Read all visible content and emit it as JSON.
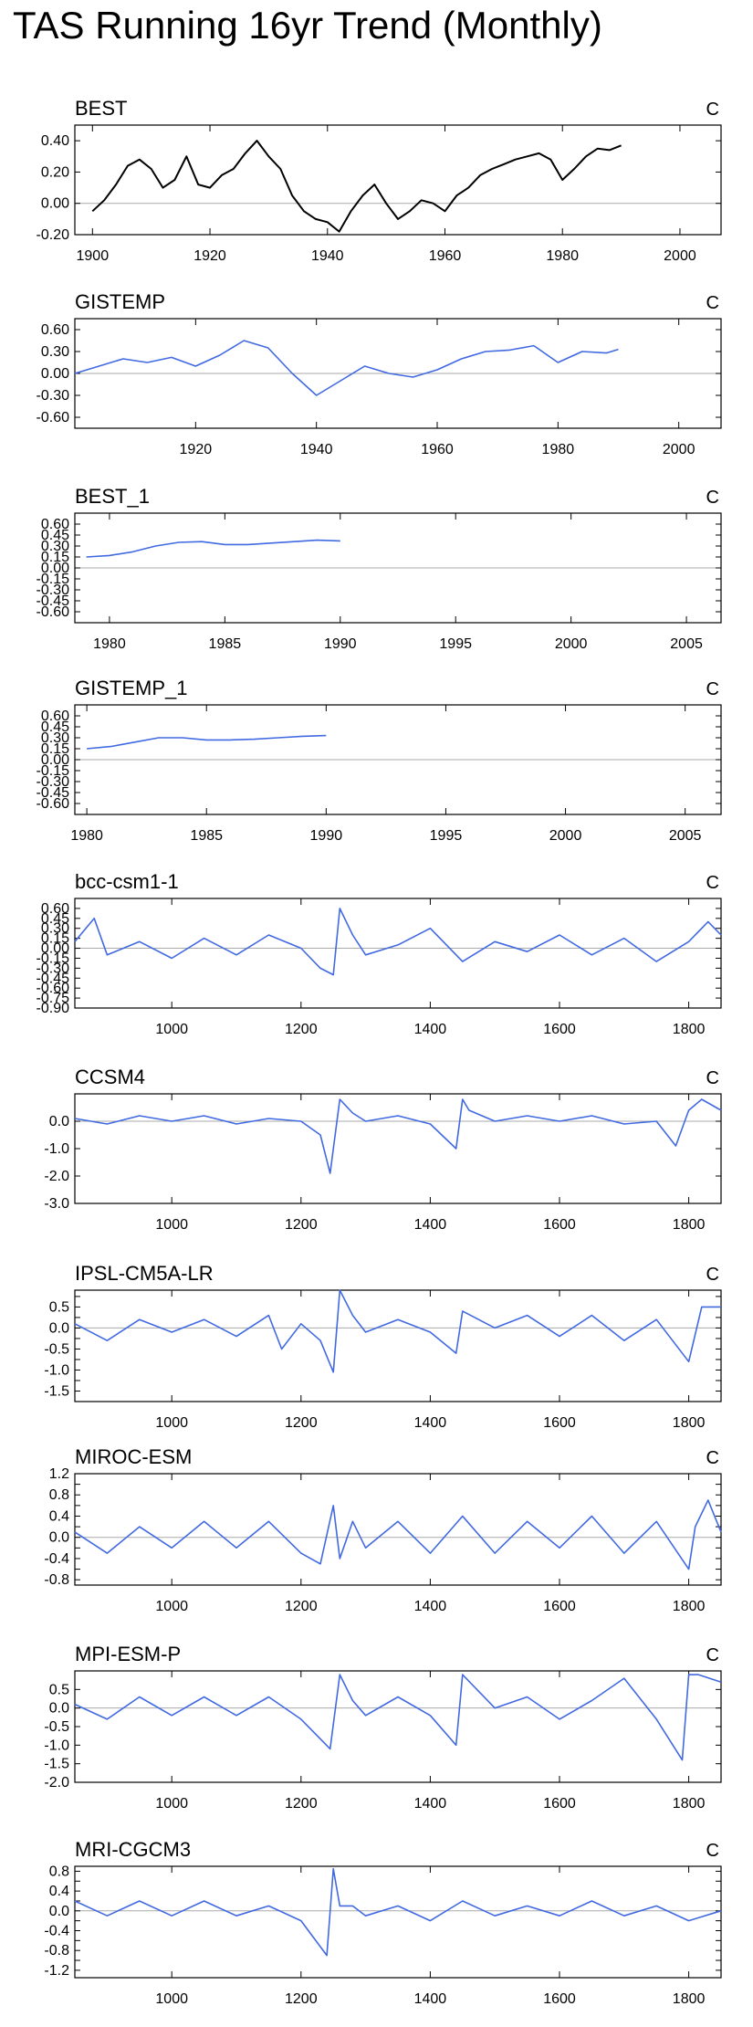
{
  "title": "TAS Running 16yr Trend (Monthly)",
  "colors": {
    "obs": "#000000",
    "model": "#4169e1",
    "zero_line": "#aaaaaa"
  },
  "chart_data": [
    {
      "type": "line",
      "name": "BEST",
      "unit": "C",
      "color": "#000000",
      "xlim": [
        1897,
        2007
      ],
      "xticks": [
        1900,
        1920,
        1940,
        1960,
        1980,
        2000
      ],
      "ylim": [
        -0.2,
        0.5
      ],
      "yticks": [
        -0.2,
        0.0,
        0.2,
        0.4
      ],
      "yfmt": 2,
      "series": [
        {
          "x": [
            1900,
            1902,
            1904,
            1906,
            1908,
            1910,
            1912,
            1914,
            1916,
            1918,
            1920,
            1922,
            1924,
            1926,
            1928,
            1930,
            1932,
            1934,
            1936,
            1938,
            1940,
            1942,
            1944,
            1946,
            1948,
            1950,
            1952,
            1954,
            1956,
            1958,
            1960,
            1962,
            1964,
            1966,
            1968,
            1970,
            1972,
            1974,
            1976,
            1978,
            1980,
            1982,
            1984,
            1986,
            1988,
            1990
          ],
          "y": [
            -0.05,
            0.02,
            0.12,
            0.24,
            0.28,
            0.22,
            0.1,
            0.15,
            0.3,
            0.12,
            0.1,
            0.18,
            0.22,
            0.32,
            0.4,
            0.3,
            0.22,
            0.05,
            -0.05,
            -0.1,
            -0.12,
            -0.18,
            -0.05,
            0.05,
            0.12,
            0.0,
            -0.1,
            -0.05,
            0.02,
            0.0,
            -0.05,
            0.05,
            0.1,
            0.18,
            0.22,
            0.25,
            0.28,
            0.3,
            0.32,
            0.28,
            0.15,
            0.22,
            0.3,
            0.35,
            0.34,
            0.37
          ]
        }
      ]
    },
    {
      "type": "line",
      "name": "GISTEMP",
      "unit": "C",
      "color": "#4169e1",
      "xlim": [
        1900,
        2007
      ],
      "xticks": [
        1920,
        1940,
        1960,
        1980,
        2000
      ],
      "ylim": [
        -0.75,
        0.75
      ],
      "yticks": [
        -0.6,
        -0.3,
        0.0,
        0.3,
        0.6
      ],
      "yfmt": 2,
      "series": [
        {
          "x": [
            1900,
            1904,
            1908,
            1912,
            1916,
            1920,
            1924,
            1928,
            1932,
            1936,
            1940,
            1944,
            1948,
            1952,
            1956,
            1960,
            1964,
            1968,
            1972,
            1976,
            1980,
            1984,
            1988,
            1990
          ],
          "y": [
            0.0,
            0.1,
            0.2,
            0.15,
            0.22,
            0.1,
            0.25,
            0.45,
            0.35,
            0.0,
            -0.3,
            -0.1,
            0.1,
            0.0,
            -0.05,
            0.05,
            0.2,
            0.3,
            0.32,
            0.38,
            0.15,
            0.3,
            0.28,
            0.33
          ]
        }
      ]
    },
    {
      "type": "line",
      "name": "BEST_1",
      "unit": "C",
      "color": "#4169e1",
      "xlim": [
        1978.5,
        2006.5
      ],
      "xticks": [
        1980,
        1985,
        1990,
        1995,
        2000,
        2005
      ],
      "ylim": [
        -0.75,
        0.75
      ],
      "yticks": [
        -0.6,
        -0.45,
        -0.3,
        -0.15,
        0.0,
        0.15,
        0.3,
        0.45,
        0.6
      ],
      "ytick_labels": [
        "-0.60",
        "-0.45",
        "-0.30",
        "-0.15",
        "0.00",
        "0.15",
        "0.30",
        "0.45",
        "0.60"
      ],
      "yfmt": 2,
      "series": [
        {
          "x": [
            1979,
            1980,
            1981,
            1982,
            1983,
            1984,
            1985,
            1986,
            1987,
            1988,
            1989,
            1990
          ],
          "y": [
            0.15,
            0.17,
            0.22,
            0.3,
            0.35,
            0.36,
            0.32,
            0.32,
            0.34,
            0.36,
            0.38,
            0.37
          ]
        }
      ]
    },
    {
      "type": "line",
      "name": "GISTEMP_1",
      "unit": "C",
      "color": "#4169e1",
      "xlim": [
        1979.5,
        2006.5
      ],
      "xticks": [
        1980,
        1985,
        1990,
        1995,
        2000,
        2005
      ],
      "ylim": [
        -0.75,
        0.75
      ],
      "yticks": [
        -0.6,
        -0.45,
        -0.3,
        -0.15,
        0.0,
        0.15,
        0.3,
        0.45,
        0.6
      ],
      "ytick_labels": [
        "-0.60",
        "-0.45",
        "-0.30",
        "-0.15",
        "0.00",
        "0.15",
        "0.30",
        "0.45",
        "0.60"
      ],
      "yfmt": 2,
      "series": [
        {
          "x": [
            1980,
            1981,
            1982,
            1983,
            1984,
            1985,
            1986,
            1987,
            1988,
            1989,
            1990
          ],
          "y": [
            0.15,
            0.18,
            0.24,
            0.3,
            0.3,
            0.27,
            0.27,
            0.28,
            0.3,
            0.32,
            0.33
          ]
        }
      ]
    },
    {
      "type": "line",
      "name": "bcc-csm1-1",
      "unit": "C",
      "color": "#4169e1",
      "xlim": [
        850,
        1850
      ],
      "xticks": [
        1000,
        1200,
        1400,
        1600,
        1800
      ],
      "ylim": [
        -0.9,
        0.75
      ],
      "yticks": [
        -0.9,
        -0.75,
        -0.6,
        -0.45,
        -0.3,
        -0.15,
        0.0,
        0.15,
        0.3,
        0.45,
        0.6
      ],
      "ytick_labels": [
        "-0.90",
        "-0.75",
        "-0.60",
        "-0.45",
        "-0.30",
        "-0.15",
        "0.00",
        "0.15",
        "0.30",
        "0.45",
        "0.60"
      ],
      "yfmt": 2,
      "series": [
        {
          "x": [
            850,
            880,
            900,
            950,
            1000,
            1050,
            1100,
            1150,
            1200,
            1230,
            1250,
            1260,
            1280,
            1300,
            1350,
            1400,
            1450,
            1500,
            1550,
            1600,
            1650,
            1700,
            1750,
            1800,
            1830,
            1850
          ],
          "y": [
            0.1,
            0.45,
            -0.1,
            0.1,
            -0.15,
            0.15,
            -0.1,
            0.2,
            0.0,
            -0.3,
            -0.4,
            0.6,
            0.2,
            -0.1,
            0.05,
            0.3,
            -0.2,
            0.1,
            -0.05,
            0.2,
            -0.1,
            0.15,
            -0.2,
            0.1,
            0.4,
            0.2
          ]
        }
      ]
    },
    {
      "type": "line",
      "name": "CCSM4",
      "unit": "C",
      "color": "#4169e1",
      "xlim": [
        850,
        1850
      ],
      "xticks": [
        1000,
        1200,
        1400,
        1600,
        1800
      ],
      "ylim": [
        -3.0,
        1.0
      ],
      "yticks": [
        -3.0,
        -2.0,
        -1.0,
        0.0
      ],
      "ytick_labels": [
        "-3.0",
        "-2.0",
        "-1.0",
        "0.0"
      ],
      "yfmt": 1,
      "series": [
        {
          "x": [
            850,
            900,
            950,
            1000,
            1050,
            1100,
            1150,
            1200,
            1230,
            1245,
            1260,
            1280,
            1300,
            1350,
            1400,
            1440,
            1450,
            1460,
            1500,
            1550,
            1600,
            1650,
            1700,
            1750,
            1780,
            1800,
            1820,
            1850
          ],
          "y": [
            0.1,
            -0.1,
            0.2,
            0.0,
            0.2,
            -0.1,
            0.1,
            0.0,
            -0.5,
            -1.9,
            0.8,
            0.3,
            0.0,
            0.2,
            -0.1,
            -1.0,
            0.8,
            0.4,
            0.0,
            0.2,
            0.0,
            0.2,
            -0.1,
            0.0,
            -0.9,
            0.4,
            0.8,
            0.4
          ]
        }
      ]
    },
    {
      "type": "line",
      "name": "IPSL-CM5A-LR",
      "unit": "C",
      "color": "#4169e1",
      "xlim": [
        850,
        1850
      ],
      "xticks": [
        1000,
        1200,
        1400,
        1600,
        1800
      ],
      "ylim": [
        -1.75,
        0.9
      ],
      "yticks": [
        -1.5,
        -1.25,
        -1.0,
        -0.75,
        -0.5,
        -0.25,
        0.0,
        0.25,
        0.5,
        0.75
      ],
      "ytick_labels": [
        "-1.5",
        "",
        "-1.0",
        "",
        "-0.5",
        "",
        "0.0",
        "",
        "0.5",
        ""
      ],
      "yfmt": 1,
      "series": [
        {
          "x": [
            850,
            900,
            950,
            1000,
            1050,
            1100,
            1150,
            1170,
            1200,
            1230,
            1250,
            1260,
            1280,
            1300,
            1350,
            1400,
            1440,
            1450,
            1500,
            1550,
            1600,
            1650,
            1700,
            1750,
            1800,
            1820,
            1850
          ],
          "y": [
            0.1,
            -0.3,
            0.2,
            -0.1,
            0.2,
            -0.2,
            0.3,
            -0.5,
            0.1,
            -0.3,
            -1.05,
            0.9,
            0.3,
            -0.1,
            0.2,
            -0.1,
            -0.6,
            0.4,
            0.0,
            0.3,
            -0.2,
            0.3,
            -0.3,
            0.2,
            -0.8,
            0.5,
            0.5
          ]
        }
      ]
    },
    {
      "type": "line",
      "name": "MIROC-ESM",
      "unit": "C",
      "color": "#4169e1",
      "xlim": [
        850,
        1850
      ],
      "xticks": [
        1000,
        1200,
        1400,
        1600,
        1800
      ],
      "ylim": [
        -0.9,
        1.2
      ],
      "yticks": [
        -0.8,
        -0.6,
        -0.4,
        -0.2,
        0.0,
        0.2,
        0.4,
        0.6,
        0.8,
        1.0,
        1.2
      ],
      "ytick_labels": [
        "-0.8",
        "",
        "-0.4",
        "",
        "0.0",
        "",
        "0.4",
        "",
        "0.8",
        "",
        "1.2"
      ],
      "yfmt": 1,
      "series": [
        {
          "x": [
            850,
            900,
            950,
            1000,
            1050,
            1100,
            1150,
            1200,
            1230,
            1250,
            1260,
            1280,
            1300,
            1350,
            1400,
            1450,
            1500,
            1550,
            1600,
            1650,
            1700,
            1750,
            1800,
            1810,
            1830,
            1850
          ],
          "y": [
            0.1,
            -0.3,
            0.2,
            -0.2,
            0.3,
            -0.2,
            0.3,
            -0.3,
            -0.5,
            0.6,
            -0.4,
            0.3,
            -0.2,
            0.3,
            -0.3,
            0.4,
            -0.3,
            0.3,
            -0.2,
            0.4,
            -0.3,
            0.3,
            -0.6,
            0.2,
            0.7,
            0.1
          ]
        }
      ]
    },
    {
      "type": "line",
      "name": "MPI-ESM-P",
      "unit": "C",
      "color": "#4169e1",
      "xlim": [
        850,
        1850
      ],
      "xticks": [
        1000,
        1200,
        1400,
        1600,
        1800
      ],
      "ylim": [
        -2.0,
        1.0
      ],
      "yticks": [
        -2.0,
        -1.5,
        -1.0,
        -0.5,
        0.0,
        0.5
      ],
      "ytick_labels": [
        "-2.0",
        "-1.5",
        "-1.0",
        "-0.5",
        "0.0",
        "0.5"
      ],
      "yfmt": 1,
      "series": [
        {
          "x": [
            850,
            900,
            950,
            1000,
            1050,
            1100,
            1150,
            1200,
            1245,
            1260,
            1280,
            1300,
            1350,
            1400,
            1440,
            1450,
            1500,
            1550,
            1600,
            1650,
            1700,
            1750,
            1790,
            1800,
            1815,
            1850
          ],
          "y": [
            0.1,
            -0.3,
            0.3,
            -0.2,
            0.3,
            -0.2,
            0.3,
            -0.3,
            -1.1,
            0.9,
            0.2,
            -0.2,
            0.3,
            -0.2,
            -1.0,
            0.9,
            0.0,
            0.3,
            -0.3,
            0.2,
            0.8,
            -0.3,
            -1.4,
            0.9,
            0.9,
            0.7
          ]
        }
      ]
    },
    {
      "type": "line",
      "name": "MRI-CGCM3",
      "unit": "C",
      "color": "#4169e1",
      "xlim": [
        850,
        1850
      ],
      "xticks": [
        1000,
        1200,
        1400,
        1600,
        1800
      ],
      "ylim": [
        -1.35,
        0.9
      ],
      "yticks": [
        -1.2,
        -1.0,
        -0.8,
        -0.6,
        -0.4,
        -0.2,
        0.0,
        0.2,
        0.4,
        0.6,
        0.8
      ],
      "ytick_labels": [
        "-1.2",
        "",
        "-0.8",
        "",
        "-0.4",
        "",
        "0.0",
        "",
        "0.4",
        "",
        "0.8"
      ],
      "yfmt": 1,
      "series": [
        {
          "x": [
            850,
            900,
            950,
            1000,
            1050,
            1100,
            1150,
            1200,
            1240,
            1250,
            1260,
            1280,
            1300,
            1350,
            1400,
            1450,
            1500,
            1550,
            1600,
            1650,
            1700,
            1750,
            1800,
            1850
          ],
          "y": [
            0.2,
            -0.1,
            0.2,
            -0.1,
            0.2,
            -0.1,
            0.1,
            -0.2,
            -0.9,
            0.85,
            0.1,
            0.1,
            -0.1,
            0.1,
            -0.2,
            0.2,
            -0.1,
            0.1,
            -0.1,
            0.2,
            -0.1,
            0.1,
            -0.2,
            0.0
          ]
        }
      ]
    }
  ]
}
